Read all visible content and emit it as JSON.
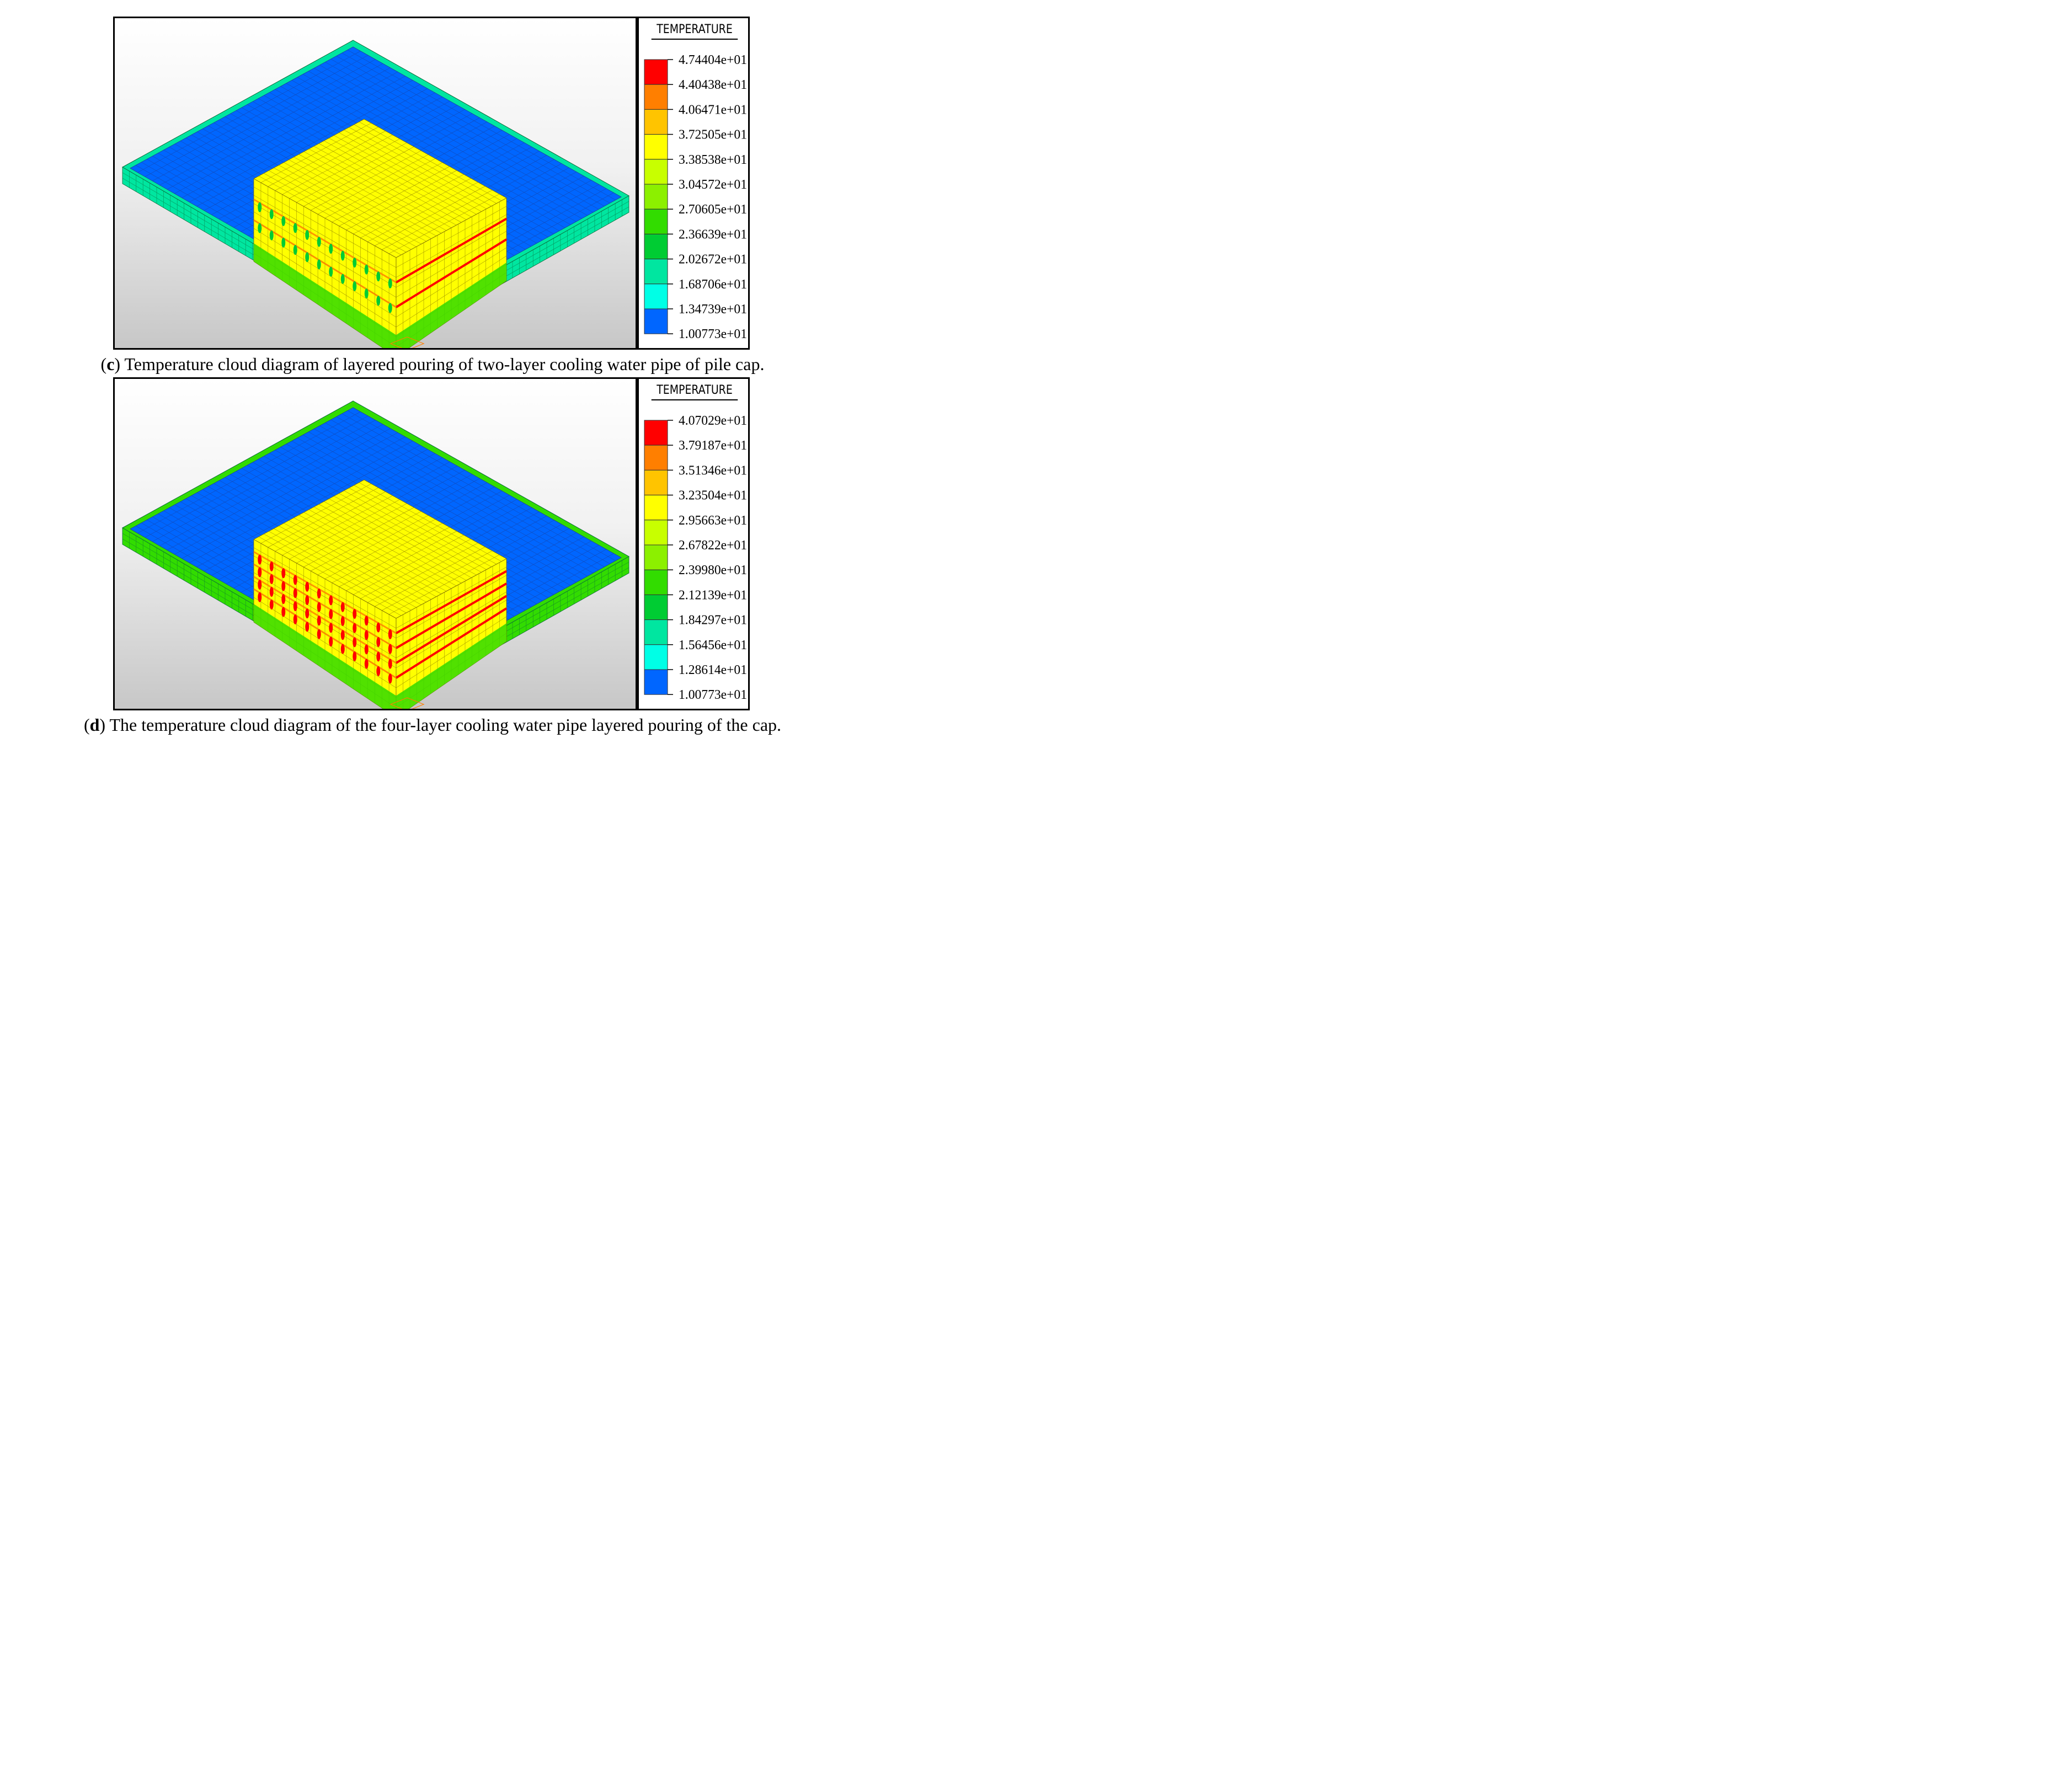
{
  "figures": [
    {
      "id": "c",
      "letter": "c",
      "caption_text": " Temperature cloud diagram of layered pouring of two-layer cooling water pipe of pile cap.",
      "legend": {
        "title": "TEMPERATURE",
        "values": [
          "4.74404e+01",
          "4.40438e+01",
          "4.06471e+01",
          "3.72505e+01",
          "3.38538e+01",
          "3.04572e+01",
          "2.70605e+01",
          "2.36639e+01",
          "2.02672e+01",
          "1.68706e+01",
          "1.34739e+01",
          "1.00773e+01"
        ],
        "colors": [
          "#ff0000",
          "#ff7f00",
          "#ffc400",
          "#ffff00",
          "#c8ff00",
          "#8cf000",
          "#32dc00",
          "#00cc33",
          "#00e6a0",
          "#00ffe6",
          "#0066ff"
        ]
      },
      "pipe_layers": 2
    },
    {
      "id": "d",
      "letter": "d",
      "caption_text": " The temperature cloud diagram of the four-layer cooling water pipe layered pouring of the cap.",
      "legend": {
        "title": "TEMPERATURE",
        "values": [
          "4.07029e+01",
          "3.79187e+01",
          "3.51346e+01",
          "3.23504e+01",
          "2.95663e+01",
          "2.67822e+01",
          "2.39980e+01",
          "2.12139e+01",
          "1.84297e+01",
          "1.56456e+01",
          "1.28614e+01",
          "1.00773e+01"
        ],
        "colors": [
          "#ff0000",
          "#ff7f00",
          "#ffc400",
          "#ffff00",
          "#c8ff00",
          "#8cf000",
          "#32dc00",
          "#00cc33",
          "#00e6a0",
          "#00ffe6",
          "#0066ff"
        ]
      },
      "pipe_layers": 4
    }
  ]
}
